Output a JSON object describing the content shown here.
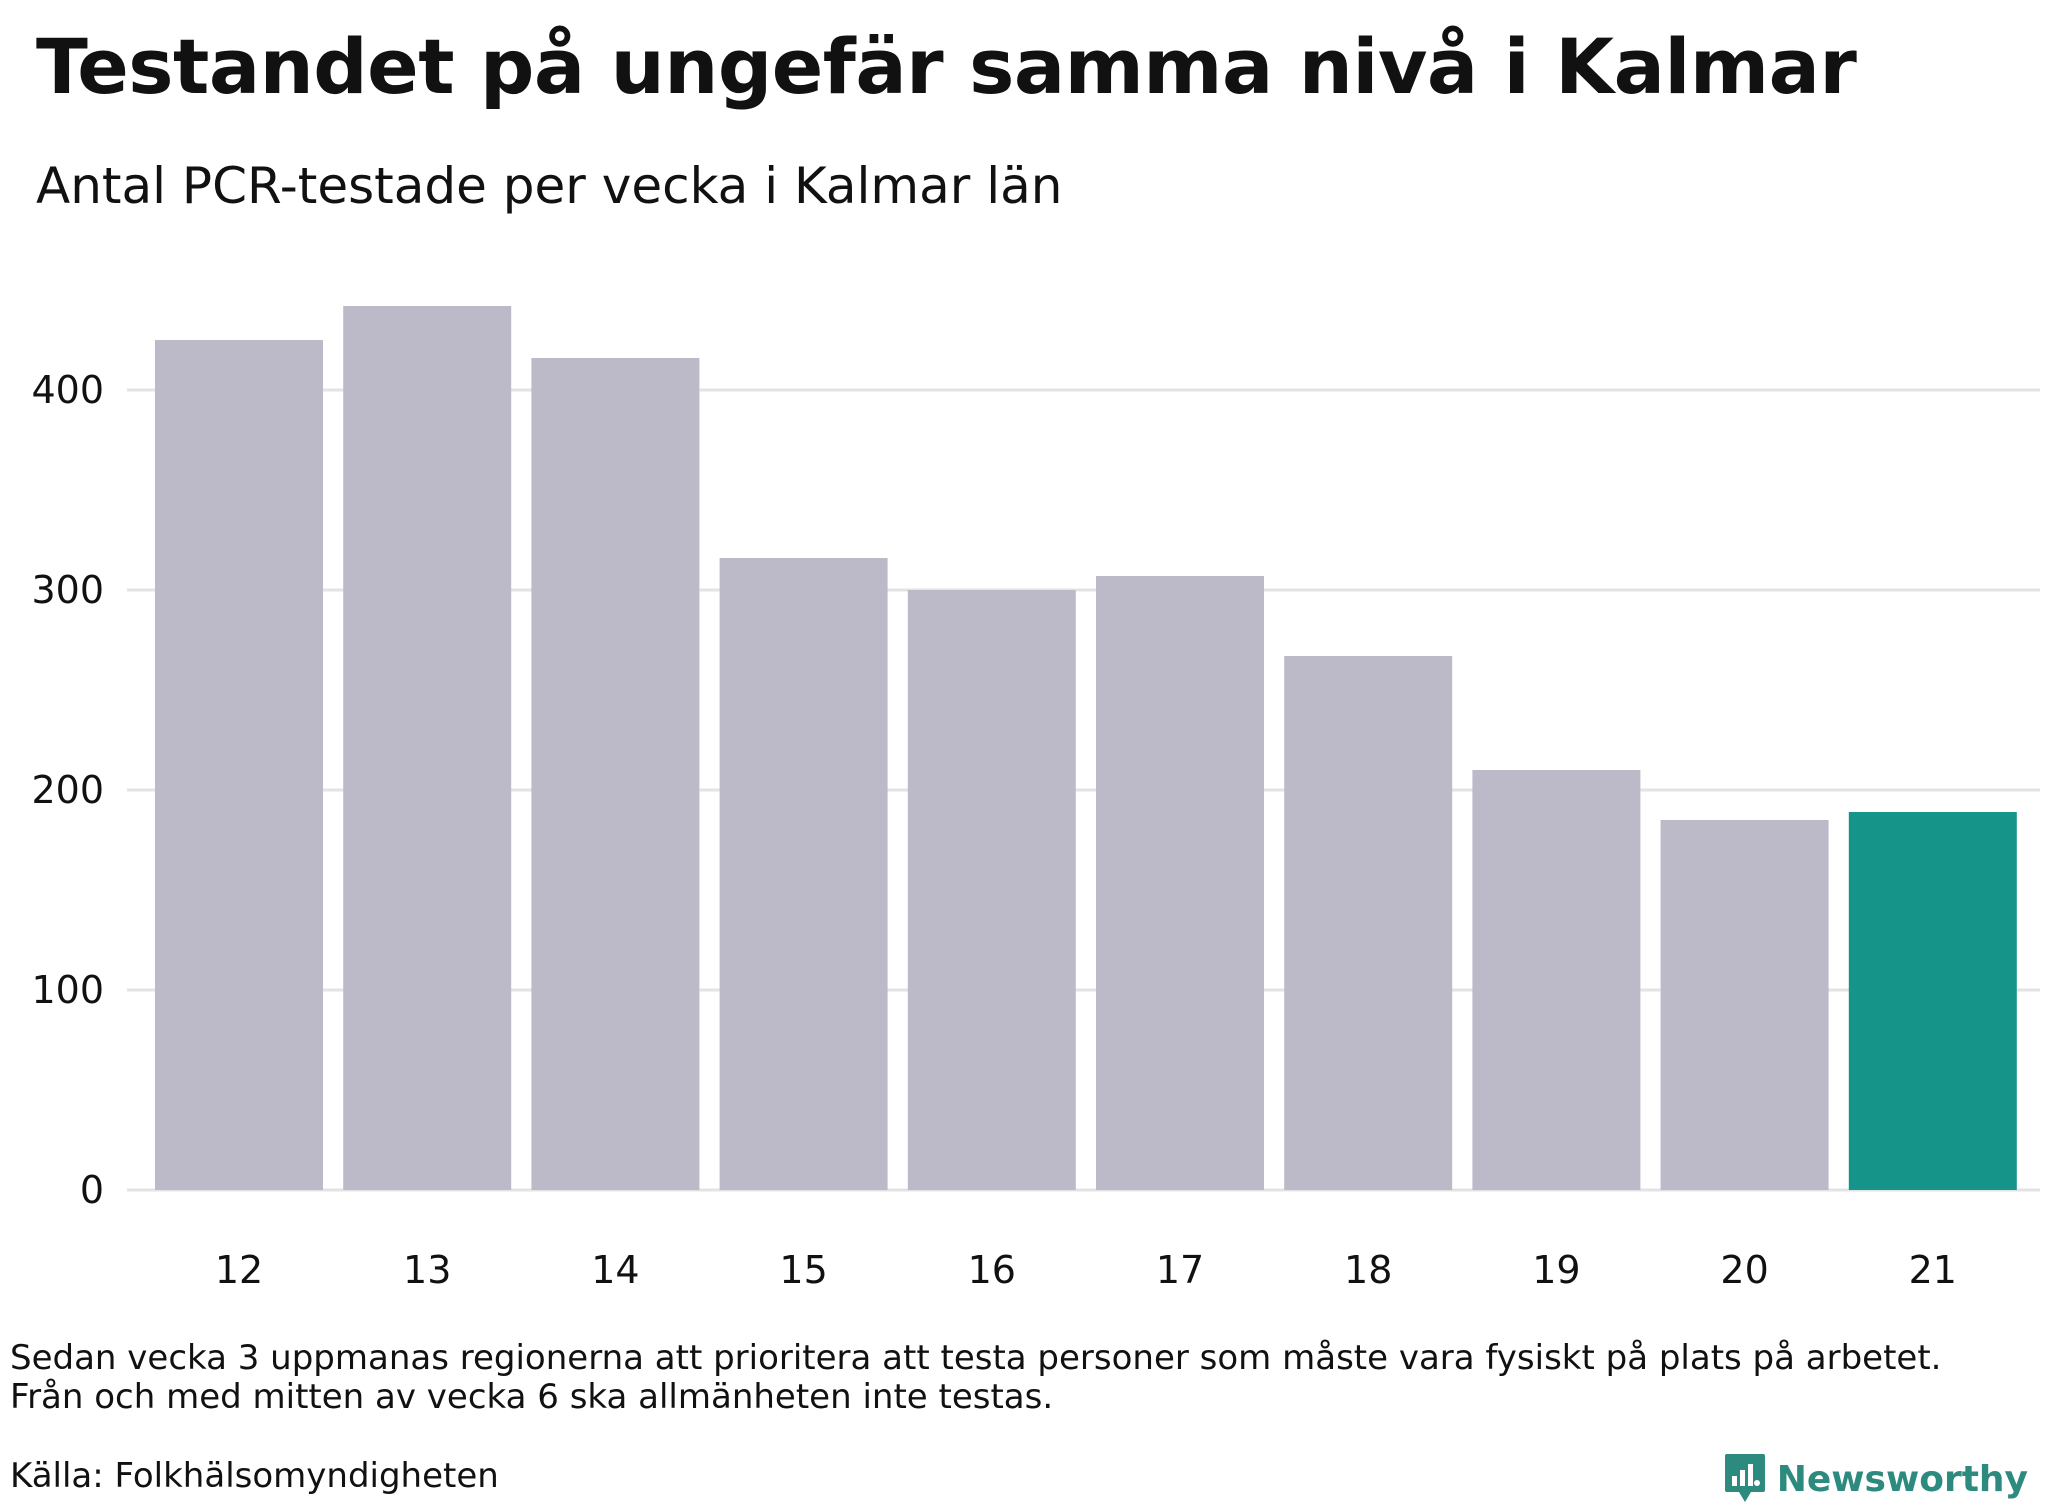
{
  "header": {
    "title": "Testandet på ungefär samma nivå i Kalmar",
    "subtitle": "Antal PCR-testade per vecka i Kalmar län"
  },
  "footer": {
    "note_line1": "Sedan vecka 3 uppmanas regionerna att prioritera att testa personer som måste vara fysiskt på plats på arbetet.",
    "note_line2": "Från och med mitten av vecka 6 ska allmänheten inte testas.",
    "source": "Källa: Folkhälsomyndigheten",
    "brand": "Newsworthy"
  },
  "colors": {
    "bar": "#bcbac8",
    "highlight": "#15958a",
    "grid": "#e3e3e6",
    "brand": "#2d8a7e"
  },
  "chart_data": {
    "type": "bar",
    "title": "Testandet på ungefär samma nivå i Kalmar",
    "subtitle": "Antal PCR-testade per vecka i Kalmar län",
    "categories": [
      "12",
      "13",
      "14",
      "15",
      "16",
      "17",
      "18",
      "19",
      "20",
      "21"
    ],
    "values": [
      425,
      442,
      416,
      316,
      300,
      307,
      267,
      210,
      185,
      189
    ],
    "highlight_index": 9,
    "ylim": [
      0,
      450
    ],
    "yticks": [
      0,
      100,
      200,
      300,
      400
    ],
    "xlabel": "",
    "ylabel": "",
    "grid": true,
    "legend": "none"
  }
}
